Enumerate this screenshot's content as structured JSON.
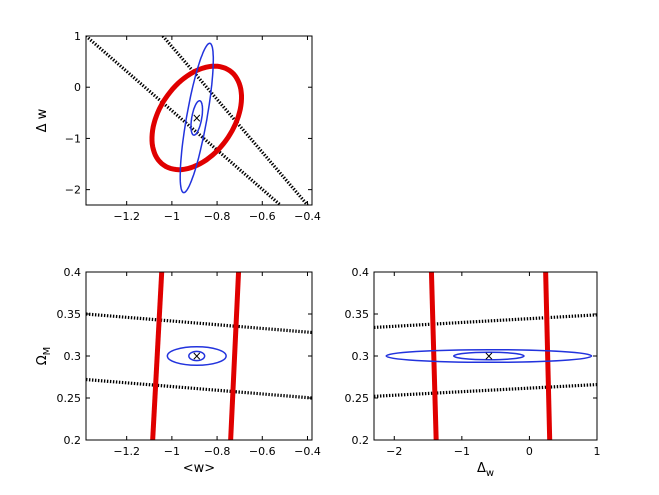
{
  "chart_data": [
    {
      "type": "contour",
      "panel": "top-left",
      "xlabel": "",
      "ylabel": "Δ w",
      "xlim": [
        -1.38,
        -0.38
      ],
      "ylim": [
        -2.3,
        1.0
      ],
      "xticks": [
        -1.2,
        -1.0,
        -0.8,
        -0.6,
        -0.4
      ],
      "yticks": [
        -2,
        -1,
        0,
        1
      ],
      "xtick_labels": [
        "−1.2",
        "−1",
        "−0.8",
        "−0.6",
        "−0.4"
      ],
      "ytick_labels": [
        "−2",
        "−1",
        "0",
        "1"
      ],
      "marker": {
        "symbol": "×",
        "x": -0.89,
        "y": -0.6
      },
      "ellipses": [
        {
          "color": "#dd0000",
          "width": 5,
          "cx": -0.89,
          "cy": -0.6,
          "rx": 0.24,
          "ry": 0.59,
          "pts": [
            [
              -1.12,
              -0.05
            ],
            [
              -0.66,
              -1.15
            ],
            [
              -1.08,
              0.0
            ],
            [
              -0.7,
              -1.2
            ]
          ]
        },
        {
          "color": "#2233dd",
          "width": 1.5,
          "cx": -0.89,
          "cy": -0.6
        },
        {
          "color": "#2233dd",
          "width": 1.5,
          "cx": -0.89,
          "cy": -0.6
        }
      ],
      "dashed_lines": [
        {
          "x": [
            -1.38,
            -0.52
          ],
          "y": [
            1.0,
            -2.3
          ]
        },
        {
          "x": [
            -1.04,
            -0.4
          ],
          "y": [
            1.0,
            -2.3
          ]
        }
      ]
    },
    {
      "type": "contour",
      "panel": "bottom-left",
      "xlabel": "<w>",
      "ylabel": "Ω",
      "ylabel_sub": "M",
      "xlim": [
        -1.38,
        -0.38
      ],
      "ylim": [
        0.2,
        0.4
      ],
      "xticks": [
        -1.2,
        -1.0,
        -0.8,
        -0.6,
        -0.4
      ],
      "yticks": [
        0.2,
        0.25,
        0.3,
        0.35,
        0.4
      ],
      "xtick_labels": [
        "−1.2",
        "−1",
        "−0.8",
        "−0.6",
        "−0.4"
      ],
      "ytick_labels": [
        "0.2",
        "0.25",
        "0.3",
        "0.35",
        "0.4"
      ],
      "marker": {
        "symbol": "×",
        "x": -0.89,
        "y": 0.3
      },
      "red_lines": [
        {
          "x": [
            -1.085,
            -1.045
          ],
          "y": [
            0.2,
            0.4
          ]
        },
        {
          "x": [
            -0.74,
            -0.705
          ],
          "y": [
            0.2,
            0.4
          ]
        }
      ],
      "blue_ellipses": [
        {
          "cx": -0.89,
          "cy": 0.3,
          "rx": 0.13,
          "ry": 0.011
        },
        {
          "cx": -0.89,
          "cy": 0.3,
          "rx": 0.035,
          "ry": 0.0055
        }
      ],
      "dashed_lines": [
        {
          "x": [
            -1.38,
            -0.38
          ],
          "y": [
            0.35,
            0.328
          ]
        },
        {
          "x": [
            -1.38,
            -0.38
          ],
          "y": [
            0.272,
            0.25
          ]
        }
      ]
    },
    {
      "type": "contour",
      "panel": "bottom-right",
      "xlabel": "Δ",
      "xlabel_sub": "w",
      "ylabel": "",
      "xlim": [
        -2.3,
        1.0
      ],
      "ylim": [
        0.2,
        0.4
      ],
      "xticks": [
        -2,
        -1,
        0,
        1
      ],
      "yticks": [
        0.2,
        0.25,
        0.3,
        0.35,
        0.4
      ],
      "xtick_labels": [
        "−2",
        "−1",
        "0",
        "1"
      ],
      "ytick_labels": [
        "0.2",
        "0.25",
        "0.3",
        "0.35",
        "0.4"
      ],
      "marker": {
        "symbol": "×",
        "x": -0.6,
        "y": 0.3
      },
      "red_lines": [
        {
          "x": [
            -1.38,
            -1.45
          ],
          "y": [
            0.2,
            0.4
          ]
        },
        {
          "x": [
            0.3,
            0.24
          ],
          "y": [
            0.2,
            0.4
          ]
        }
      ],
      "blue_ellipses": [
        {
          "cx": -0.6,
          "cy": 0.3,
          "rx": 1.52,
          "ry": 0.0075
        },
        {
          "cx": -0.6,
          "cy": 0.3,
          "rx": 0.52,
          "ry": 0.0045
        }
      ],
      "dashed_lines": [
        {
          "x": [
            -2.3,
            1.0
          ],
          "y": [
            0.334,
            0.349
          ]
        },
        {
          "x": [
            -2.3,
            1.0
          ],
          "y": [
            0.252,
            0.266
          ]
        }
      ]
    }
  ]
}
